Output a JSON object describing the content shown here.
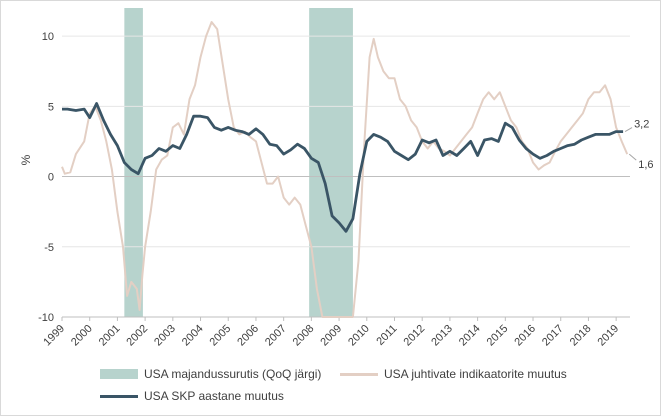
{
  "chart_data": {
    "type": "line",
    "ylabel": "%",
    "ylim": [
      -10,
      12
    ],
    "yticks": [
      10,
      5,
      0,
      -5,
      -10
    ],
    "xlim": [
      1999.0,
      2019.5
    ],
    "xtick_labels": [
      "1999",
      "2000",
      "2001",
      "2002",
      "2003",
      "2004",
      "2005",
      "2006",
      "2007",
      "2008",
      "2009",
      "2010",
      "2011",
      "2012",
      "2013",
      "2014",
      "2015",
      "2016",
      "2017",
      "2018",
      "2019"
    ],
    "grid": "horizontal",
    "legend_placement": "bottom",
    "recessions": [
      {
        "start": 2001.25,
        "end": 2001.92
      },
      {
        "start": 2007.92,
        "end": 2009.5
      }
    ],
    "series": [
      {
        "name": "USA majandussurutis (QoQ järgi)",
        "kind": "shaded-band",
        "color": "#b7d3cd"
      },
      {
        "name": "USA juhtivate indikaatorite muutus",
        "color": "#e3cfc4",
        "points": [
          [
            1999.0,
            0.7
          ],
          [
            1999.1,
            0.2
          ],
          [
            1999.3,
            0.3
          ],
          [
            1999.5,
            1.6
          ],
          [
            1999.8,
            2.5
          ],
          [
            2000.0,
            4.5
          ],
          [
            2000.2,
            5.0
          ],
          [
            2000.4,
            4.0
          ],
          [
            2000.6,
            2.5
          ],
          [
            2000.8,
            0.5
          ],
          [
            2001.0,
            -2.5
          ],
          [
            2001.2,
            -5.0
          ],
          [
            2001.35,
            -8.5
          ],
          [
            2001.5,
            -7.5
          ],
          [
            2001.7,
            -8.0
          ],
          [
            2001.8,
            -9.5
          ],
          [
            2001.9,
            -7.0
          ],
          [
            2002.0,
            -5.0
          ],
          [
            2002.2,
            -2.5
          ],
          [
            2002.4,
            0.5
          ],
          [
            2002.6,
            1.2
          ],
          [
            2002.8,
            1.5
          ],
          [
            2003.0,
            3.5
          ],
          [
            2003.2,
            3.8
          ],
          [
            2003.4,
            3.0
          ],
          [
            2003.6,
            5.5
          ],
          [
            2003.8,
            6.5
          ],
          [
            2004.0,
            8.5
          ],
          [
            2004.2,
            10.0
          ],
          [
            2004.4,
            11.0
          ],
          [
            2004.6,
            10.5
          ],
          [
            2004.8,
            8.0
          ],
          [
            2005.0,
            5.5
          ],
          [
            2005.2,
            3.5
          ],
          [
            2005.4,
            3.0
          ],
          [
            2005.6,
            3.2
          ],
          [
            2005.8,
            2.8
          ],
          [
            2006.0,
            2.5
          ],
          [
            2006.2,
            1.0
          ],
          [
            2006.4,
            -0.5
          ],
          [
            2006.6,
            -0.5
          ],
          [
            2006.8,
            0.0
          ],
          [
            2007.0,
            -1.5
          ],
          [
            2007.2,
            -2.0
          ],
          [
            2007.4,
            -1.5
          ],
          [
            2007.6,
            -2.0
          ],
          [
            2007.8,
            -3.5
          ],
          [
            2008.0,
            -5.0
          ],
          [
            2008.2,
            -8.0
          ],
          [
            2008.4,
            -10.0
          ],
          [
            2009.0,
            -10.0
          ],
          [
            2009.5,
            -10.0
          ],
          [
            2009.7,
            -6.0
          ],
          [
            2009.9,
            2.0
          ],
          [
            2010.1,
            8.5
          ],
          [
            2010.25,
            9.8
          ],
          [
            2010.4,
            8.5
          ],
          [
            2010.6,
            7.5
          ],
          [
            2010.8,
            7.0
          ],
          [
            2011.0,
            7.0
          ],
          [
            2011.2,
            5.5
          ],
          [
            2011.4,
            5.0
          ],
          [
            2011.6,
            4.0
          ],
          [
            2011.8,
            3.5
          ],
          [
            2012.0,
            2.5
          ],
          [
            2012.2,
            2.0
          ],
          [
            2012.4,
            2.5
          ],
          [
            2012.6,
            2.0
          ],
          [
            2012.8,
            1.8
          ],
          [
            2013.0,
            1.5
          ],
          [
            2013.2,
            2.0
          ],
          [
            2013.4,
            2.5
          ],
          [
            2013.6,
            3.0
          ],
          [
            2013.8,
            3.5
          ],
          [
            2014.0,
            4.5
          ],
          [
            2014.2,
            5.5
          ],
          [
            2014.4,
            6.0
          ],
          [
            2014.6,
            5.5
          ],
          [
            2014.8,
            6.0
          ],
          [
            2015.0,
            5.0
          ],
          [
            2015.2,
            4.0
          ],
          [
            2015.4,
            3.5
          ],
          [
            2015.6,
            2.5
          ],
          [
            2015.8,
            2.0
          ],
          [
            2016.0,
            1.0
          ],
          [
            2016.2,
            0.5
          ],
          [
            2016.4,
            0.8
          ],
          [
            2016.6,
            1.0
          ],
          [
            2016.8,
            1.8
          ],
          [
            2017.0,
            2.5
          ],
          [
            2017.2,
            3.0
          ],
          [
            2017.4,
            3.5
          ],
          [
            2017.6,
            4.0
          ],
          [
            2017.8,
            4.5
          ],
          [
            2018.0,
            5.5
          ],
          [
            2018.2,
            6.0
          ],
          [
            2018.4,
            6.0
          ],
          [
            2018.6,
            6.5
          ],
          [
            2018.8,
            5.5
          ],
          [
            2019.0,
            3.5
          ],
          [
            2019.2,
            2.5
          ],
          [
            2019.4,
            1.6
          ]
        ]
      },
      {
        "name": "USA SKP aastane muutus",
        "color": "#3a5566",
        "points": [
          [
            1999.0,
            4.8
          ],
          [
            1999.2,
            4.8
          ],
          [
            1999.5,
            4.7
          ],
          [
            1999.8,
            4.8
          ],
          [
            2000.0,
            4.2
          ],
          [
            2000.25,
            5.2
          ],
          [
            2000.5,
            4.0
          ],
          [
            2000.75,
            3.0
          ],
          [
            2001.0,
            2.2
          ],
          [
            2001.25,
            1.0
          ],
          [
            2001.5,
            0.5
          ],
          [
            2001.75,
            0.2
          ],
          [
            2002.0,
            1.3
          ],
          [
            2002.25,
            1.5
          ],
          [
            2002.5,
            2.0
          ],
          [
            2002.75,
            1.8
          ],
          [
            2003.0,
            2.2
          ],
          [
            2003.25,
            2.0
          ],
          [
            2003.5,
            3.0
          ],
          [
            2003.75,
            4.3
          ],
          [
            2004.0,
            4.3
          ],
          [
            2004.25,
            4.2
          ],
          [
            2004.5,
            3.5
          ],
          [
            2004.75,
            3.3
          ],
          [
            2005.0,
            3.5
          ],
          [
            2005.25,
            3.3
          ],
          [
            2005.5,
            3.2
          ],
          [
            2005.75,
            3.0
          ],
          [
            2006.0,
            3.4
          ],
          [
            2006.25,
            3.0
          ],
          [
            2006.5,
            2.3
          ],
          [
            2006.75,
            2.2
          ],
          [
            2007.0,
            1.6
          ],
          [
            2007.25,
            1.9
          ],
          [
            2007.5,
            2.3
          ],
          [
            2007.75,
            2.0
          ],
          [
            2008.0,
            1.3
          ],
          [
            2008.25,
            1.0
          ],
          [
            2008.5,
            -0.5
          ],
          [
            2008.75,
            -2.8
          ],
          [
            2009.0,
            -3.3
          ],
          [
            2009.25,
            -3.9
          ],
          [
            2009.5,
            -3.0
          ],
          [
            2009.75,
            0.2
          ],
          [
            2010.0,
            2.5
          ],
          [
            2010.25,
            3.0
          ],
          [
            2010.5,
            2.8
          ],
          [
            2010.75,
            2.5
          ],
          [
            2011.0,
            1.8
          ],
          [
            2011.25,
            1.5
          ],
          [
            2011.5,
            1.2
          ],
          [
            2011.75,
            1.6
          ],
          [
            2012.0,
            2.6
          ],
          [
            2012.25,
            2.4
          ],
          [
            2012.5,
            2.6
          ],
          [
            2012.75,
            1.5
          ],
          [
            2013.0,
            1.8
          ],
          [
            2013.25,
            1.5
          ],
          [
            2013.5,
            2.0
          ],
          [
            2013.75,
            2.5
          ],
          [
            2014.0,
            1.5
          ],
          [
            2014.25,
            2.6
          ],
          [
            2014.5,
            2.7
          ],
          [
            2014.75,
            2.5
          ],
          [
            2015.0,
            3.8
          ],
          [
            2015.25,
            3.5
          ],
          [
            2015.5,
            2.6
          ],
          [
            2015.75,
            2.0
          ],
          [
            2016.0,
            1.6
          ],
          [
            2016.25,
            1.3
          ],
          [
            2016.5,
            1.5
          ],
          [
            2016.75,
            1.8
          ],
          [
            2017.0,
            2.0
          ],
          [
            2017.25,
            2.2
          ],
          [
            2017.5,
            2.3
          ],
          [
            2017.75,
            2.6
          ],
          [
            2018.0,
            2.8
          ],
          [
            2018.25,
            3.0
          ],
          [
            2018.5,
            3.0
          ],
          [
            2018.75,
            3.0
          ],
          [
            2019.0,
            3.2
          ],
          [
            2019.25,
            3.2
          ]
        ]
      }
    ],
    "end_labels": [
      {
        "series": "USA SKP aastane muutus",
        "text": "3,2"
      },
      {
        "series": "USA juhtivate indikaatorite muutus",
        "text": "1,6"
      }
    ]
  }
}
